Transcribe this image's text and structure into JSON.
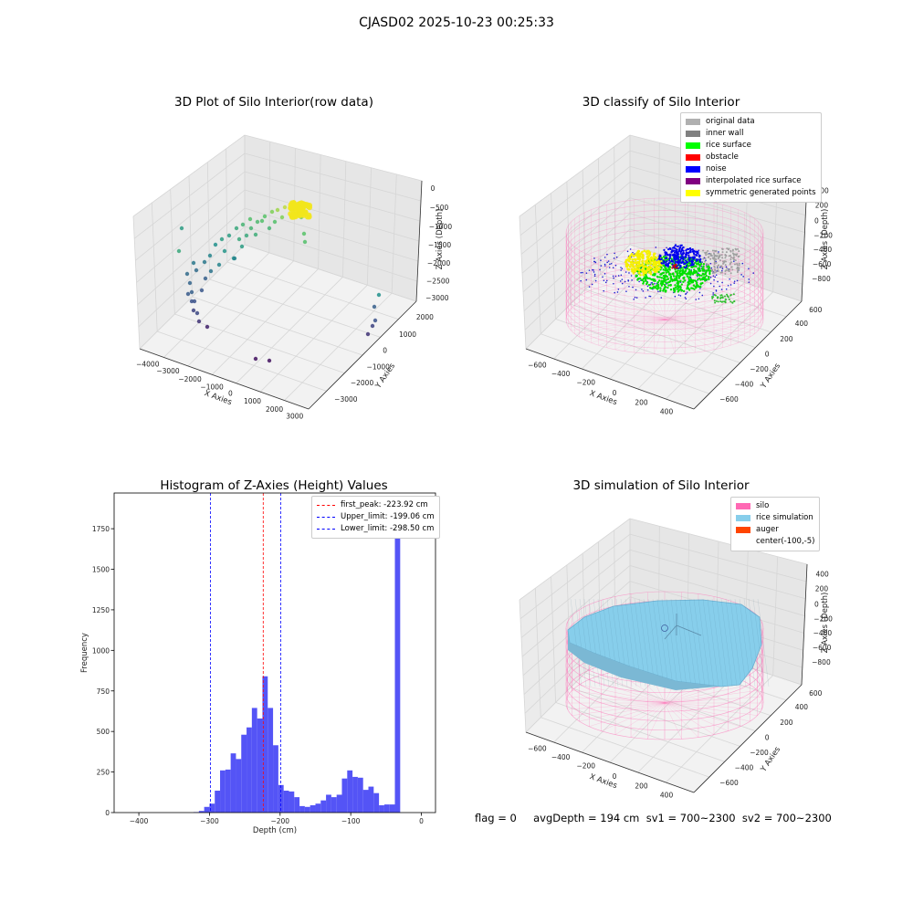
{
  "figure_title": "CJASD02 2025-10-23 00:25:33",
  "colors": {
    "original": "#b0b0b0",
    "inner_wall": "#808080",
    "rice_surface": "#00ff00",
    "obstacle": "#ff0000",
    "noise": "#0000ff",
    "interp": "#800080",
    "symmetric": "#ffff00",
    "silo": "#ff69b4",
    "rice_sim": "#87ceeb",
    "auger": "#ff4500",
    "hist_bar": "#4b4bf5"
  },
  "panel1": {
    "title": "3D Plot of Silo Interior(row data)",
    "xlabel": "X Axies",
    "ylabel": "Y Axies",
    "zlabel": "Z Axies (Depth)",
    "xticks": [
      "−4000",
      "−3000",
      "−2000",
      "−1000",
      "0",
      "1000",
      "2000",
      "3000"
    ],
    "yticks": [
      "2000",
      "1000",
      "0",
      "−1000",
      "−2000",
      "−3000"
    ],
    "zticks": [
      "0",
      "−500",
      "−1000",
      "−1500",
      "−2000",
      "−2500",
      "−3000"
    ]
  },
  "panel2": {
    "title": "3D classify of Silo Interior",
    "xlabel": "X Axies",
    "ylabel": "Y Axies",
    "zlabel": "Z Axies (Depth)",
    "xticks": [
      "−600",
      "−400",
      "−200",
      "0",
      "200",
      "400"
    ],
    "yticks": [
      "600",
      "400",
      "200",
      "0",
      "−200",
      "−400",
      "−600"
    ],
    "zticks": [
      "400",
      "200",
      "0",
      "−200",
      "−400",
      "−600",
      "−800"
    ],
    "legend": [
      {
        "label": "original data",
        "color": "#b0b0b0"
      },
      {
        "label": "inner wall",
        "color": "#808080"
      },
      {
        "label": "rice surface",
        "color": "#00ff00"
      },
      {
        "label": "obstacle",
        "color": "#ff0000"
      },
      {
        "label": "noise",
        "color": "#0000ff"
      },
      {
        "label": "interpolated rice surface",
        "color": "#800080"
      },
      {
        "label": "symmetric generated points",
        "color": "#ffff00"
      }
    ]
  },
  "panel4": {
    "title": "3D simulation of Silo Interior",
    "xlabel": "X Axies",
    "ylabel": "Y Axies",
    "zlabel": "Z Axies (Depth)",
    "xticks": [
      "−600",
      "−400",
      "−200",
      "0",
      "200",
      "400"
    ],
    "yticks": [
      "600",
      "400",
      "200",
      "0",
      "−200",
      "−400",
      "−600"
    ],
    "zticks": [
      "400",
      "200",
      "0",
      "−200",
      "−400",
      "−600",
      "−800"
    ],
    "legend": [
      {
        "label": "silo",
        "color": "#ff69b4"
      },
      {
        "label": "rice simulation",
        "color": "#87ceeb"
      },
      {
        "label": "auger",
        "color": "#ff4500"
      },
      {
        "label": "center(-100,-5)",
        "color": ""
      }
    ]
  },
  "chart_data": [
    {
      "type": "histogram",
      "title": "Histogram of Z-Axies (Height) Values",
      "xlabel": "Depth (cm)",
      "ylabel": "Frequency",
      "xlim": [
        -435,
        20
      ],
      "ylim": [
        0,
        1970
      ],
      "xticks": [
        -400,
        -300,
        -200,
        -100,
        0
      ],
      "yticks": [
        0,
        250,
        500,
        750,
        1000,
        1250,
        1500,
        1750
      ],
      "bin_width": 7.5,
      "bins": [
        [
          -322.5,
          3
        ],
        [
          -315,
          10
        ],
        [
          -307.5,
          35
        ],
        [
          -300,
          55
        ],
        [
          -292.5,
          135
        ],
        [
          -285,
          260
        ],
        [
          -277.5,
          265
        ],
        [
          -270,
          365
        ],
        [
          -262.5,
          330
        ],
        [
          -255,
          480
        ],
        [
          -247.5,
          525
        ],
        [
          -240,
          645
        ],
        [
          -232.5,
          580
        ],
        [
          -225,
          840
        ],
        [
          -217.5,
          645
        ],
        [
          -210,
          415
        ],
        [
          -202.5,
          170
        ],
        [
          -195,
          135
        ],
        [
          -187.5,
          130
        ],
        [
          -180,
          95
        ],
        [
          -172.5,
          40
        ],
        [
          -165,
          35
        ],
        [
          -157.5,
          45
        ],
        [
          -150,
          55
        ],
        [
          -142.5,
          75
        ],
        [
          -135,
          110
        ],
        [
          -127.5,
          95
        ],
        [
          -120,
          110
        ],
        [
          -112.5,
          210
        ],
        [
          -105,
          260
        ],
        [
          -97.5,
          220
        ],
        [
          -90,
          215
        ],
        [
          -82.5,
          140
        ],
        [
          -75,
          160
        ],
        [
          -67.5,
          120
        ],
        [
          -60,
          45
        ],
        [
          -52.5,
          50
        ],
        [
          -45,
          50
        ],
        [
          -37.5,
          1880
        ]
      ],
      "lines": [
        {
          "label": "first_peak: -223.92 cm",
          "x": -223.92,
          "color": "#ff0000"
        },
        {
          "label": "Upper_limit: -199.06 cm",
          "x": -199.06,
          "color": "#0000ff"
        },
        {
          "label": "Lower_limit: -298.50 cm",
          "x": -298.5,
          "color": "#0000ff"
        }
      ],
      "legend_position": "upper right"
    }
  ],
  "footer": "flag = 0     avgDepth = 194 cm  sv1 = 700~2300  sv2 = 700~2300"
}
